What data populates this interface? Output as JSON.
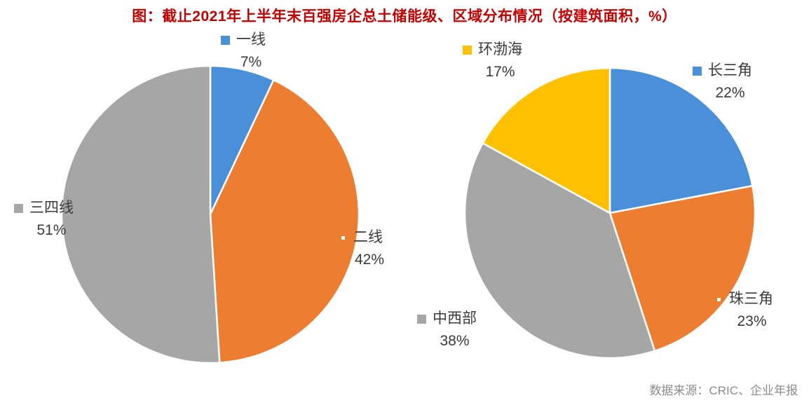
{
  "title": "图：截止2021年上半年末百强房企总土储能级、区域分布情况（按建筑面积，%）",
  "source": "数据来源：CRIC、企业年报",
  "colors": {
    "blue": "#4a90d9",
    "orange": "#ed7d31",
    "gray": "#a6a6a6",
    "yellow": "#ffc000",
    "title_red": "#c00000",
    "source_gray": "#8c8c8c",
    "label_text": "#3a3a3a"
  },
  "chart_data": [
    {
      "type": "pie",
      "start_angle_deg": 0,
      "direction": "clockwise",
      "slices": [
        {
          "label": "一线",
          "value": 7,
          "pct": "7%",
          "color": "blue",
          "marker": "solid"
        },
        {
          "label": "二线",
          "value": 42,
          "pct": "42%",
          "color": "orange",
          "marker": "outline"
        },
        {
          "label": "三四线",
          "value": 51,
          "pct": "51%",
          "color": "gray",
          "marker": "solid"
        }
      ]
    },
    {
      "type": "pie",
      "start_angle_deg": 0,
      "direction": "clockwise",
      "slices": [
        {
          "label": "长三角",
          "value": 22,
          "pct": "22%",
          "color": "blue",
          "marker": "solid"
        },
        {
          "label": "珠三角",
          "value": 23,
          "pct": "23%",
          "color": "orange",
          "marker": "outline"
        },
        {
          "label": "中西部",
          "value": 38,
          "pct": "38%",
          "color": "gray",
          "marker": "solid"
        },
        {
          "label": "环渤海",
          "value": 17,
          "pct": "17%",
          "color": "yellow",
          "marker": "solid"
        }
      ]
    }
  ]
}
